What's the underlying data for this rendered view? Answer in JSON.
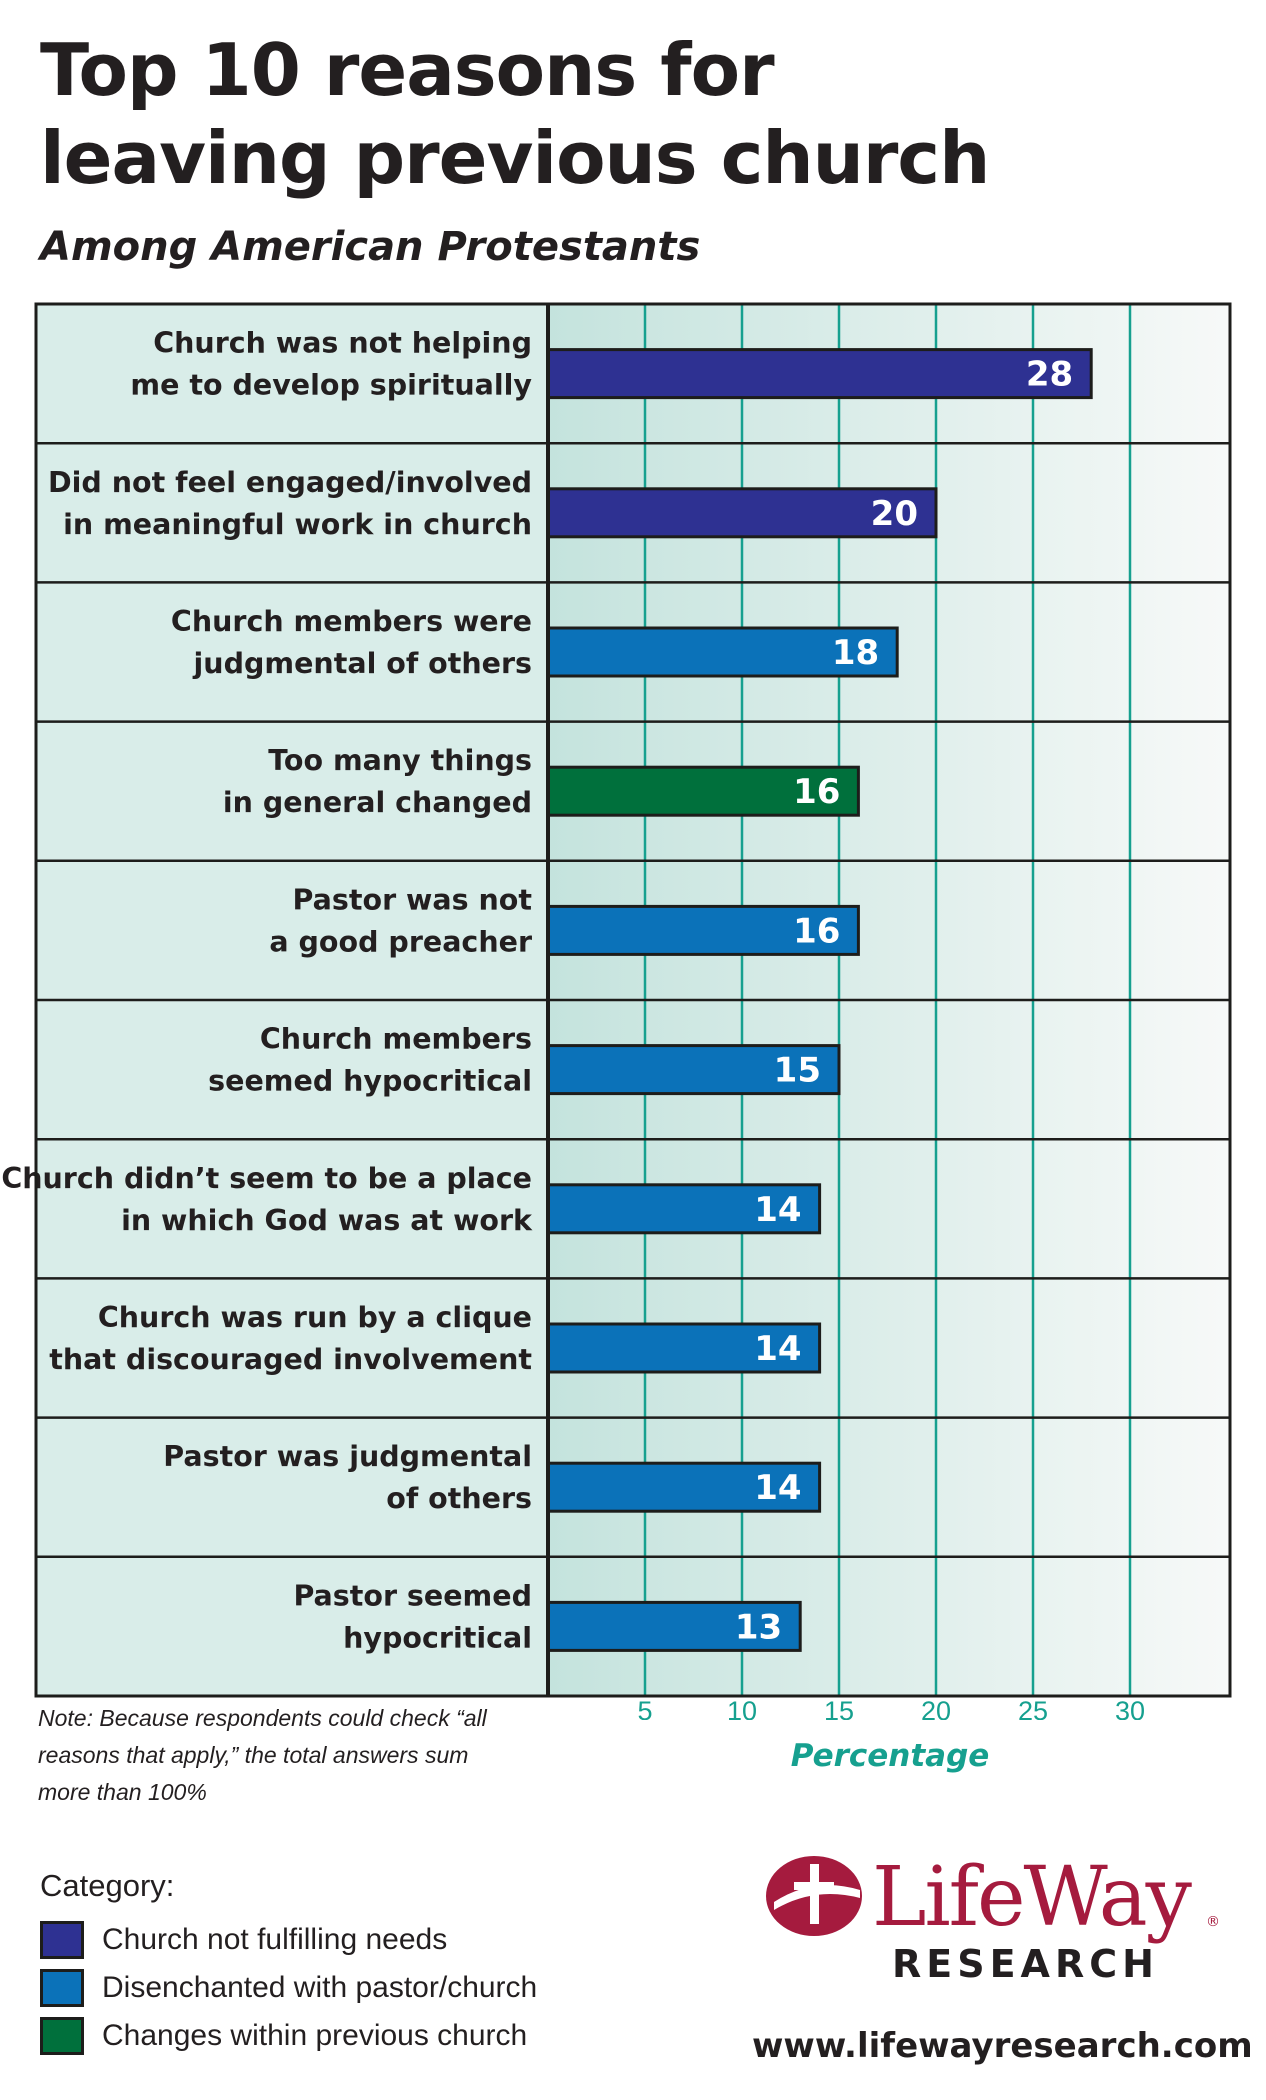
{
  "header": {
    "title_line1": "Top 10 reasons for",
    "title_line2": "leaving previous church",
    "subtitle": "Among American Protestants"
  },
  "chart_data": {
    "type": "bar",
    "orientation": "horizontal",
    "categories": [
      [
        "Church was not helping",
        "me to develop spiritually"
      ],
      [
        "Did not feel engaged/involved",
        "in meaningful work in church"
      ],
      [
        "Church members were",
        "judgmental of others"
      ],
      [
        "Too many things",
        "in general changed"
      ],
      [
        "Pastor was not",
        "a good preacher"
      ],
      [
        "Church members",
        "seemed hypocritical"
      ],
      [
        "Church didn’t seem to be a place",
        "in which God was at work"
      ],
      [
        "Church was run by a clique",
        "that discouraged involvement"
      ],
      [
        "Pastor was judgmental",
        "of others"
      ],
      [
        "Pastor seemed",
        "hypocritical"
      ]
    ],
    "values": [
      28,
      20,
      18,
      16,
      16,
      15,
      14,
      14,
      14,
      13
    ],
    "value_labels": [
      "28",
      "20",
      "18",
      "16",
      "16",
      "15",
      "14",
      "14",
      "14",
      "13"
    ],
    "bar_categories": [
      "Church not fulfilling needs",
      "Church not fulfilling needs",
      "Disenchanted with pastor/church",
      "Changes within previous church",
      "Disenchanted with pastor/church",
      "Disenchanted with pastor/church",
      "Disenchanted with pastor/church",
      "Disenchanted with pastor/church",
      "Disenchanted with pastor/church",
      "Disenchanted with pastor/church"
    ],
    "xlabel": "Percentage",
    "xticks": [
      5,
      10,
      15,
      20,
      25,
      30
    ],
    "xlim": [
      0,
      35
    ],
    "grid": true
  },
  "note": "Note: Because respondents could check “all reasons that apply,” the total answers sum more than 100%",
  "legend": {
    "title": "Category:",
    "items": [
      {
        "label": "Church not fulfilling needs",
        "color": "#2e3192"
      },
      {
        "label": "Disenchanted with pastor/church",
        "color": "#0b72b9"
      },
      {
        "label": "Changes within previous church",
        "color": "#00703c"
      }
    ]
  },
  "colors": {
    "panel_bg": "#d9ede9",
    "grid_line": "#16a08f",
    "frame": "#1d1d1b",
    "brand": "#a51b3e"
  },
  "logo": {
    "wordmark": "LifeWay",
    "reg_mark": "®",
    "subtext": "RESEARCH"
  },
  "footer": {
    "url": "www.lifewayresearch.com"
  }
}
